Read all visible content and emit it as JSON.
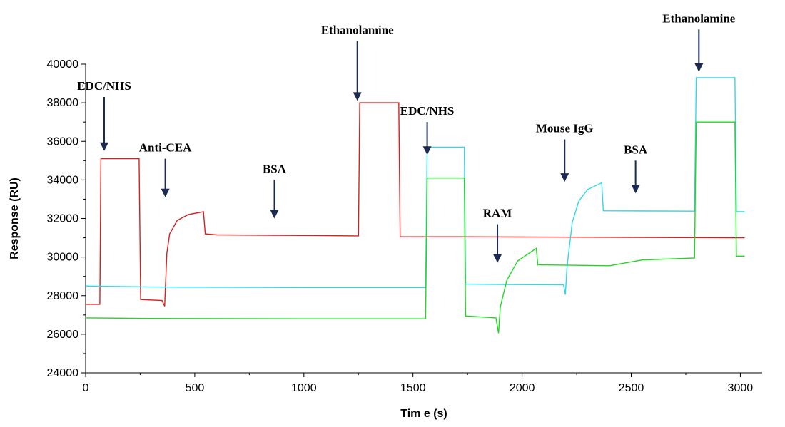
{
  "chart_data": {
    "type": "line",
    "title": "",
    "xlabel": "Tim e (s)",
    "ylabel": "Response (RU)",
    "xlim": [
      0,
      3100
    ],
    "ylim": [
      24000,
      40000
    ],
    "grid": false,
    "x_ticks": [
      0,
      500,
      1000,
      1500,
      2000,
      2500,
      3000
    ],
    "y_ticks": [
      24000,
      26000,
      28000,
      30000,
      32000,
      34000,
      36000,
      38000,
      40000
    ],
    "series": [
      {
        "color": "#d42020",
        "points": [
          [
            0,
            27550
          ],
          [
            65,
            27550
          ],
          [
            70,
            35100
          ],
          [
            245,
            35100
          ],
          [
            252,
            27800
          ],
          [
            350,
            27750
          ],
          [
            362,
            27450
          ],
          [
            372,
            30200
          ],
          [
            385,
            31200
          ],
          [
            420,
            31900
          ],
          [
            470,
            32200
          ],
          [
            540,
            32350
          ],
          [
            548,
            31200
          ],
          [
            600,
            31150
          ],
          [
            1000,
            31120
          ],
          [
            1250,
            31100
          ],
          [
            1256,
            38000
          ],
          [
            1435,
            38000
          ],
          [
            1441,
            31050
          ],
          [
            1700,
            31050
          ],
          [
            2000,
            31040
          ],
          [
            2500,
            31020
          ],
          [
            3020,
            31000
          ]
        ]
      },
      {
        "color": "#30d8e8",
        "points": [
          [
            0,
            28500
          ],
          [
            300,
            28450
          ],
          [
            1000,
            28420
          ],
          [
            1558,
            28420
          ],
          [
            1565,
            35700
          ],
          [
            1735,
            35700
          ],
          [
            1741,
            28600
          ],
          [
            1900,
            28580
          ],
          [
            2190,
            28560
          ],
          [
            2198,
            28050
          ],
          [
            2206,
            29500
          ],
          [
            2230,
            31800
          ],
          [
            2260,
            32900
          ],
          [
            2300,
            33500
          ],
          [
            2365,
            33850
          ],
          [
            2372,
            32400
          ],
          [
            2790,
            32380
          ],
          [
            2798,
            39300
          ],
          [
            2975,
            39300
          ],
          [
            2982,
            32350
          ],
          [
            3020,
            32350
          ]
        ]
      },
      {
        "color": "#20d820",
        "points": [
          [
            0,
            26850
          ],
          [
            300,
            26820
          ],
          [
            1000,
            26800
          ],
          [
            1558,
            26800
          ],
          [
            1565,
            34100
          ],
          [
            1735,
            34100
          ],
          [
            1741,
            26950
          ],
          [
            1880,
            26850
          ],
          [
            1892,
            26050
          ],
          [
            1900,
            27400
          ],
          [
            1930,
            28800
          ],
          [
            1980,
            29800
          ],
          [
            2065,
            30450
          ],
          [
            2072,
            29600
          ],
          [
            2400,
            29550
          ],
          [
            2550,
            29850
          ],
          [
            2790,
            29950
          ],
          [
            2798,
            37000
          ],
          [
            2975,
            37000
          ],
          [
            2982,
            30050
          ],
          [
            3020,
            30050
          ]
        ]
      }
    ],
    "annotations": [
      {
        "text": "EDC/NHS",
        "x": 85,
        "arrow_top": 38300,
        "arrow_bottom": 35500
      },
      {
        "text": "Anti-CEA",
        "x": 365,
        "arrow_top": 35100,
        "arrow_bottom": 33100
      },
      {
        "text": "BSA",
        "x": 865,
        "arrow_top": 34000,
        "arrow_bottom": 32000
      },
      {
        "text": "Ethanolamine",
        "x": 1245,
        "arrow_top": 41200,
        "arrow_bottom": 38100
      },
      {
        "text": "EDC/NHS",
        "x": 1565,
        "arrow_top": 37000,
        "arrow_bottom": 35300
      },
      {
        "text": "RAM",
        "x": 1887,
        "arrow_top": 31700,
        "arrow_bottom": 29700
      },
      {
        "text": "Mouse IgG",
        "x": 2195,
        "arrow_top": 36100,
        "arrow_bottom": 33900
      },
      {
        "text": "BSA",
        "x": 2520,
        "arrow_top": 35000,
        "arrow_bottom": 33300
      },
      {
        "text": "Ethanolamine",
        "x": 2810,
        "arrow_top": 41800,
        "arrow_bottom": 39600
      }
    ],
    "annotation_color": "#1a2a50"
  }
}
